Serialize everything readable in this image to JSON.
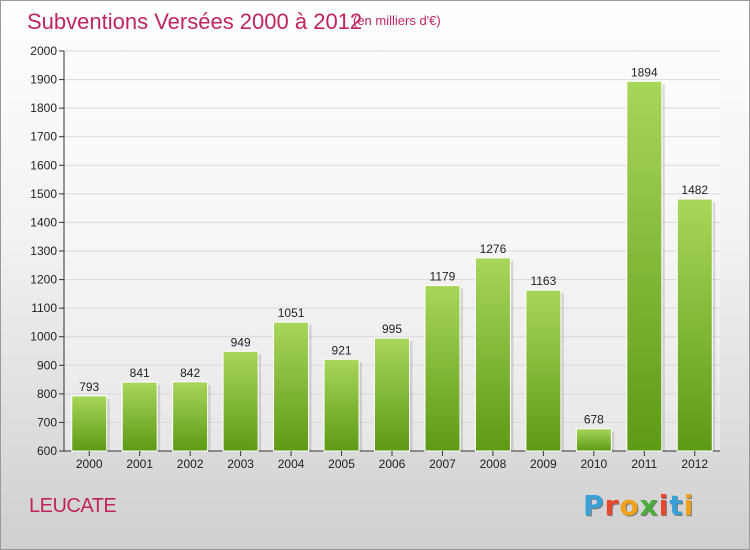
{
  "title": "Subventions Versées 2000 à 2012",
  "subtitle": "(en milliers d'€)",
  "commune": "LEUCATE",
  "logo": {
    "text": "Proxiti",
    "letter_colors": [
      "#3aa0d8",
      "#e8492e",
      "#f2a21b",
      "#4cae3a",
      "#e8492e",
      "#3aa0d8",
      "#f2a21b"
    ]
  },
  "colors": {
    "title": "#c0245f",
    "bar_top": "#a8d65a",
    "bar_bottom": "#5d9a14",
    "axis": "#333333"
  },
  "chart_data": {
    "type": "bar",
    "title": "Subventions Versées 2000 à 2012",
    "subtitle": "(en milliers d'€)",
    "xlabel": "",
    "ylabel": "",
    "categories": [
      "2000",
      "2001",
      "2002",
      "2003",
      "2004",
      "2005",
      "2006",
      "2007",
      "2008",
      "2009",
      "2010",
      "2011",
      "2012"
    ],
    "values": [
      793,
      841,
      842,
      949,
      1051,
      921,
      995,
      1179,
      1276,
      1163,
      678,
      1894,
      1482
    ],
    "ylim": [
      600,
      2000
    ],
    "yticks": [
      600,
      700,
      800,
      900,
      1000,
      1100,
      1200,
      1300,
      1400,
      1500,
      1600,
      1700,
      1800,
      1900,
      2000
    ],
    "grid": true,
    "data_labels": true
  }
}
